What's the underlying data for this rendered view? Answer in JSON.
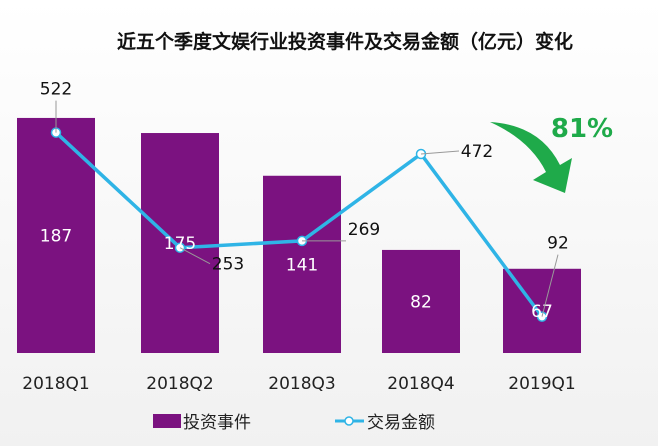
{
  "chart_data": {
    "type": "bar+line",
    "title": "近五个季度文娱行业投资事件及交易金额（亿元）变化",
    "categories": [
      "2018Q1",
      "2018Q2",
      "2018Q3",
      "2018Q4",
      "2019Q1"
    ],
    "series": [
      {
        "name": "投资事件",
        "type": "bar",
        "color": "#7b1280",
        "values": [
          187,
          175,
          141,
          82,
          67
        ]
      },
      {
        "name": "交易金额",
        "type": "line",
        "color": "#2fb4e6",
        "values": [
          522,
          253,
          269,
          472,
          92
        ]
      }
    ],
    "annotation": {
      "text": "81%",
      "color": "#1faa4a",
      "icon": "curved-down-arrow"
    },
    "legend": "bottom",
    "grid": false
  }
}
